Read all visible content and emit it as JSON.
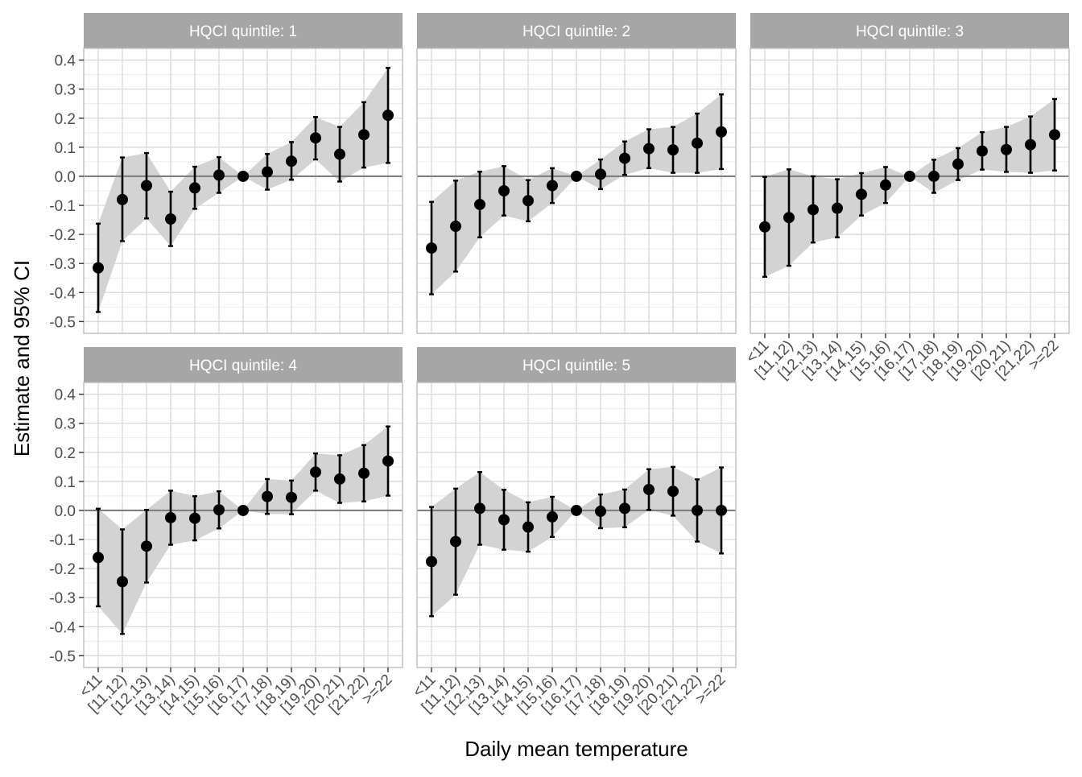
{
  "ylabel": "Estimate and 95% CI",
  "xlabel": "Daily mean temperature",
  "colors": {
    "strip": "#a6a6a6",
    "strip_text": "#ffffff",
    "grid": "#dcdcdc",
    "panel_border": "#bdbdbd",
    "ribbon": "#d3d3d3",
    "reference_line": "#7f7f7f",
    "point": "#000000",
    "axis_text": "#4d4d4d"
  },
  "chart_data": {
    "type": "scatter",
    "subtype": "point estimates with 95% CI error bars and shaded CI ribbon",
    "categories": [
      "<11",
      "[11,12)",
      "[12,13)",
      "[13,14)",
      "[14,15)",
      "[15,16)",
      "[16,17)",
      "[17,18)",
      "[18,19)",
      "[19,20)",
      "[20,21)",
      "[21,22)",
      ">=22"
    ],
    "ylim": [
      -0.5,
      0.4
    ],
    "yticks": [
      -0.5,
      -0.4,
      -0.3,
      -0.2,
      -0.1,
      0.0,
      0.1,
      0.2,
      0.3,
      0.4
    ],
    "ytick_labels": [
      "-0.5",
      "-0.4",
      "-0.3",
      "-0.2",
      "-0.1",
      "0.0",
      "0.1",
      "0.2",
      "0.3",
      "0.4"
    ],
    "reference_line": 0,
    "grid": true,
    "panels": [
      {
        "title": "HQCI quintile: 1",
        "estimate": [
          -0.315,
          -0.08,
          -0.032,
          -0.147,
          -0.04,
          0.004,
          0.0,
          0.015,
          0.052,
          0.132,
          0.076,
          0.143,
          0.21
        ],
        "lower": [
          -0.467,
          -0.223,
          -0.145,
          -0.24,
          -0.112,
          -0.057,
          0.0,
          -0.046,
          -0.012,
          0.058,
          -0.018,
          0.03,
          0.046
        ],
        "upper": [
          -0.163,
          0.065,
          0.08,
          -0.053,
          0.033,
          0.066,
          0.0,
          0.077,
          0.118,
          0.204,
          0.17,
          0.255,
          0.373
        ]
      },
      {
        "title": "HQCI quintile: 2",
        "estimate": [
          -0.247,
          -0.172,
          -0.097,
          -0.05,
          -0.084,
          -0.032,
          0.0,
          0.007,
          0.062,
          0.095,
          0.091,
          0.114,
          0.153
        ],
        "lower": [
          -0.406,
          -0.328,
          -0.21,
          -0.135,
          -0.155,
          -0.092,
          0.0,
          -0.044,
          0.005,
          0.028,
          0.012,
          0.012,
          0.025
        ],
        "upper": [
          -0.088,
          -0.015,
          0.016,
          0.035,
          -0.013,
          0.028,
          0.0,
          0.058,
          0.12,
          0.162,
          0.17,
          0.216,
          0.282
        ]
      },
      {
        "title": "HQCI quintile: 3",
        "estimate": [
          -0.174,
          -0.142,
          -0.115,
          -0.11,
          -0.062,
          -0.03,
          0.0,
          0.0,
          0.042,
          0.087,
          0.092,
          0.109,
          0.143
        ],
        "lower": [
          -0.346,
          -0.308,
          -0.228,
          -0.21,
          -0.135,
          -0.092,
          0.0,
          -0.057,
          -0.013,
          0.023,
          0.015,
          0.012,
          0.02
        ],
        "upper": [
          -0.002,
          0.024,
          0.0,
          -0.01,
          0.011,
          0.032,
          0.0,
          0.057,
          0.097,
          0.152,
          0.17,
          0.206,
          0.266
        ]
      },
      {
        "title": "HQCI quintile: 4",
        "estimate": [
          -0.162,
          -0.245,
          -0.123,
          -0.025,
          -0.027,
          0.002,
          0.0,
          0.048,
          0.045,
          0.132,
          0.108,
          0.128,
          0.17
        ],
        "lower": [
          -0.33,
          -0.425,
          -0.248,
          -0.118,
          -0.103,
          -0.062,
          0.0,
          -0.012,
          -0.013,
          0.068,
          0.026,
          0.031,
          0.051
        ],
        "upper": [
          0.006,
          -0.065,
          0.002,
          0.068,
          0.049,
          0.066,
          0.0,
          0.108,
          0.103,
          0.196,
          0.19,
          0.225,
          0.289
        ]
      },
      {
        "title": "HQCI quintile: 5",
        "estimate": [
          -0.176,
          -0.107,
          0.007,
          -0.032,
          -0.057,
          -0.022,
          0.0,
          -0.003,
          0.007,
          0.072,
          0.066,
          0.0,
          0.0
        ],
        "lower": [
          -0.364,
          -0.29,
          -0.118,
          -0.135,
          -0.142,
          -0.091,
          0.0,
          -0.061,
          -0.058,
          0.002,
          -0.018,
          -0.107,
          -0.148
        ],
        "upper": [
          0.012,
          0.075,
          0.132,
          0.071,
          0.028,
          0.047,
          0.0,
          0.055,
          0.072,
          0.142,
          0.15,
          0.107,
          0.148
        ]
      }
    ]
  }
}
